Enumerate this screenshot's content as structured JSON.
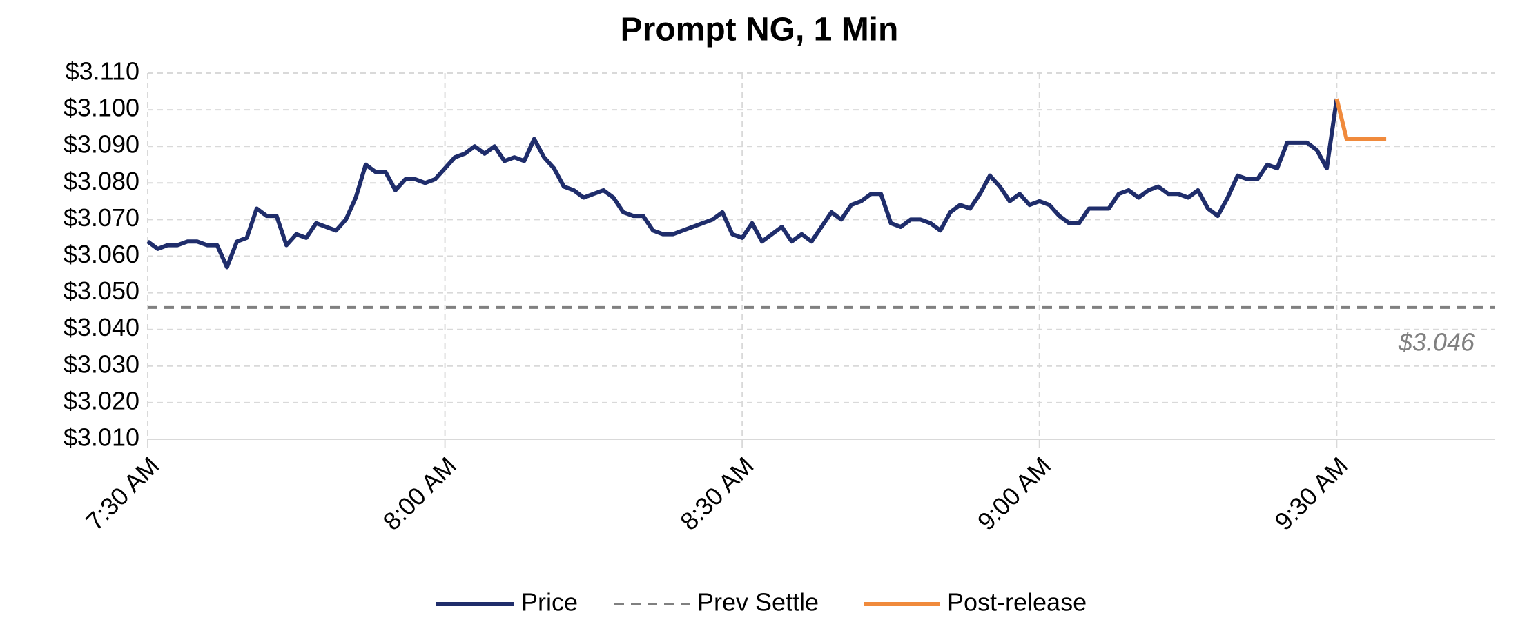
{
  "chart_data": {
    "type": "line",
    "title": "Prompt NG, 1 Min",
    "categories": [
      "7:30 AM",
      null,
      null,
      null,
      null,
      null,
      null,
      null,
      null,
      null,
      null,
      null,
      null,
      null,
      null,
      null,
      null,
      null,
      null,
      null,
      null,
      null,
      null,
      null,
      null,
      null,
      null,
      null,
      null,
      null,
      "8:00 AM",
      null,
      null,
      null,
      null,
      null,
      null,
      null,
      null,
      null,
      null,
      null,
      null,
      null,
      null,
      null,
      null,
      null,
      null,
      null,
      null,
      null,
      null,
      null,
      null,
      null,
      null,
      null,
      null,
      null,
      "8:30 AM",
      null,
      null,
      null,
      null,
      null,
      null,
      null,
      null,
      null,
      null,
      null,
      null,
      null,
      null,
      null,
      null,
      null,
      null,
      null,
      null,
      null,
      null,
      null,
      null,
      null,
      null,
      null,
      null,
      null,
      "9:00 AM",
      null,
      null,
      null,
      null,
      null,
      null,
      null,
      null,
      null,
      null,
      null,
      null,
      null,
      null,
      null,
      null,
      null,
      null,
      null,
      null,
      null,
      null,
      null,
      null,
      null,
      null,
      null,
      null,
      null,
      "9:30 AM",
      null,
      null,
      null,
      null,
      null,
      null,
      null,
      null,
      null,
      null,
      null,
      null,
      null,
      null,
      null,
      null
    ],
    "series": [
      {
        "name": "Price",
        "color": "#1f2d6b",
        "values": [
          3.064,
          3.062,
          3.063,
          3.063,
          3.064,
          3.064,
          3.063,
          3.063,
          3.057,
          3.064,
          3.065,
          3.073,
          3.071,
          3.071,
          3.063,
          3.066,
          3.065,
          3.069,
          3.068,
          3.067,
          3.07,
          3.076,
          3.085,
          3.083,
          3.083,
          3.078,
          3.081,
          3.081,
          3.08,
          3.081,
          3.084,
          3.087,
          3.088,
          3.09,
          3.088,
          3.09,
          3.086,
          3.087,
          3.086,
          3.092,
          3.087,
          3.084,
          3.079,
          3.078,
          3.076,
          3.077,
          3.078,
          3.076,
          3.072,
          3.071,
          3.071,
          3.067,
          3.066,
          3.066,
          3.067,
          3.068,
          3.069,
          3.07,
          3.072,
          3.066,
          3.065,
          3.069,
          3.064,
          3.066,
          3.068,
          3.064,
          3.066,
          3.064,
          3.068,
          3.072,
          3.07,
          3.074,
          3.075,
          3.077,
          3.077,
          3.069,
          3.068,
          3.07,
          3.07,
          3.069,
          3.067,
          3.072,
          3.074,
          3.073,
          3.077,
          3.082,
          3.079,
          3.075,
          3.077,
          3.074,
          3.075,
          3.074,
          3.071,
          3.069,
          3.069,
          3.073,
          3.073,
          3.073,
          3.077,
          3.078,
          3.076,
          3.078,
          3.079,
          3.077,
          3.077,
          3.076,
          3.078,
          3.073,
          3.071,
          3.076,
          3.082,
          3.081,
          3.081,
          3.085,
          3.084,
          3.091,
          3.091,
          3.091,
          3.089,
          3.084,
          3.103,
          null,
          null,
          null,
          null,
          null,
          null,
          null,
          null,
          null,
          null,
          null,
          null,
          null,
          null,
          null,
          null
        ]
      },
      {
        "name": "Post-release",
        "color": "#f08a3c",
        "values": [
          null,
          null,
          null,
          null,
          null,
          null,
          null,
          null,
          null,
          null,
          null,
          null,
          null,
          null,
          null,
          null,
          null,
          null,
          null,
          null,
          null,
          null,
          null,
          null,
          null,
          null,
          null,
          null,
          null,
          null,
          null,
          null,
          null,
          null,
          null,
          null,
          null,
          null,
          null,
          null,
          null,
          null,
          null,
          null,
          null,
          null,
          null,
          null,
          null,
          null,
          null,
          null,
          null,
          null,
          null,
          null,
          null,
          null,
          null,
          null,
          null,
          null,
          null,
          null,
          null,
          null,
          null,
          null,
          null,
          null,
          null,
          null,
          null,
          null,
          null,
          null,
          null,
          null,
          null,
          null,
          null,
          null,
          null,
          null,
          null,
          null,
          null,
          null,
          null,
          null,
          null,
          null,
          null,
          null,
          null,
          null,
          null,
          null,
          null,
          null,
          null,
          null,
          null,
          null,
          null,
          null,
          null,
          null,
          null,
          null,
          null,
          null,
          null,
          null,
          null,
          null,
          null,
          null,
          null,
          null,
          3.103,
          3.092,
          3.092,
          3.092,
          3.092,
          3.092,
          null,
          null,
          null,
          null,
          null,
          null,
          null,
          null,
          null,
          null,
          null
        ]
      }
    ],
    "prev_settle": {
      "name": "Prev Settle",
      "value": 3.046,
      "label": "$3.046",
      "color": "#808080"
    },
    "ylim": [
      3.01,
      3.11
    ],
    "yticks": [
      {
        "value": 3.01,
        "label": "$3.010"
      },
      {
        "value": 3.02,
        "label": "$3.020"
      },
      {
        "value": 3.03,
        "label": "$3.030"
      },
      {
        "value": 3.04,
        "label": "$3.040"
      },
      {
        "value": 3.05,
        "label": "$3.050"
      },
      {
        "value": 3.06,
        "label": "$3.060"
      },
      {
        "value": 3.07,
        "label": "$3.070"
      },
      {
        "value": 3.08,
        "label": "$3.080"
      },
      {
        "value": 3.09,
        "label": "$3.090"
      },
      {
        "value": 3.1,
        "label": "$3.100"
      },
      {
        "value": 3.11,
        "label": "$3.110"
      }
    ],
    "grid": true
  }
}
